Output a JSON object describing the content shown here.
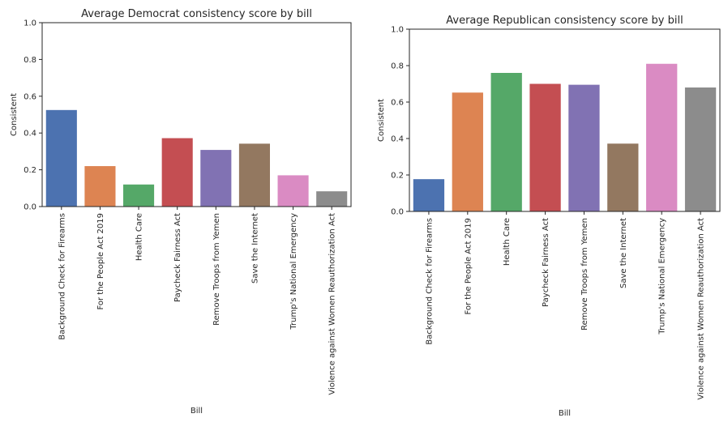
{
  "chart_data": [
    {
      "type": "bar",
      "title": "Average Democrat consistency score by bill",
      "xlabel": "Bill",
      "ylabel": "Consistent",
      "ylim": [
        0,
        1
      ],
      "yticks": [
        "0.0",
        "0.2",
        "0.4",
        "0.6",
        "0.8",
        "1.0"
      ],
      "grid": false,
      "categories": [
        "Background Check for Firearms",
        "For the People Act 2019",
        "Health Care",
        "Paycheck Fairness Act",
        "Remove Troops from Yemen",
        "Save the Internet",
        "Trump's National Emergency",
        "Violence against Women Reauthorization Act"
      ],
      "values": [
        0.525,
        0.22,
        0.12,
        0.372,
        0.308,
        0.342,
        0.17,
        0.083
      ],
      "colors": [
        "#4c72b0",
        "#dd8452",
        "#55a868",
        "#c44e52",
        "#8172b3",
        "#937860",
        "#da8bc3",
        "#8c8c8c"
      ]
    },
    {
      "type": "bar",
      "title": "Average Republican consistency score by bill",
      "xlabel": "Bill",
      "ylabel": "Consistent",
      "ylim": [
        0,
        1
      ],
      "yticks": [
        "0.0",
        "0.2",
        "0.4",
        "0.6",
        "0.8",
        "1.0"
      ],
      "grid": false,
      "categories": [
        "Background Check for Firearms",
        "For the People Act 2019",
        "Health Care",
        "Paycheck Fairness Act",
        "Remove Troops from Yemen",
        "Save the Internet",
        "Trump's National Emergency",
        "Violence against Women Reauthorization Act"
      ],
      "values": [
        0.177,
        0.652,
        0.76,
        0.7,
        0.695,
        0.372,
        0.81,
        0.68
      ],
      "colors": [
        "#4c72b0",
        "#dd8452",
        "#55a868",
        "#c44e52",
        "#8172b3",
        "#937860",
        "#da8bc3",
        "#8c8c8c"
      ]
    }
  ]
}
